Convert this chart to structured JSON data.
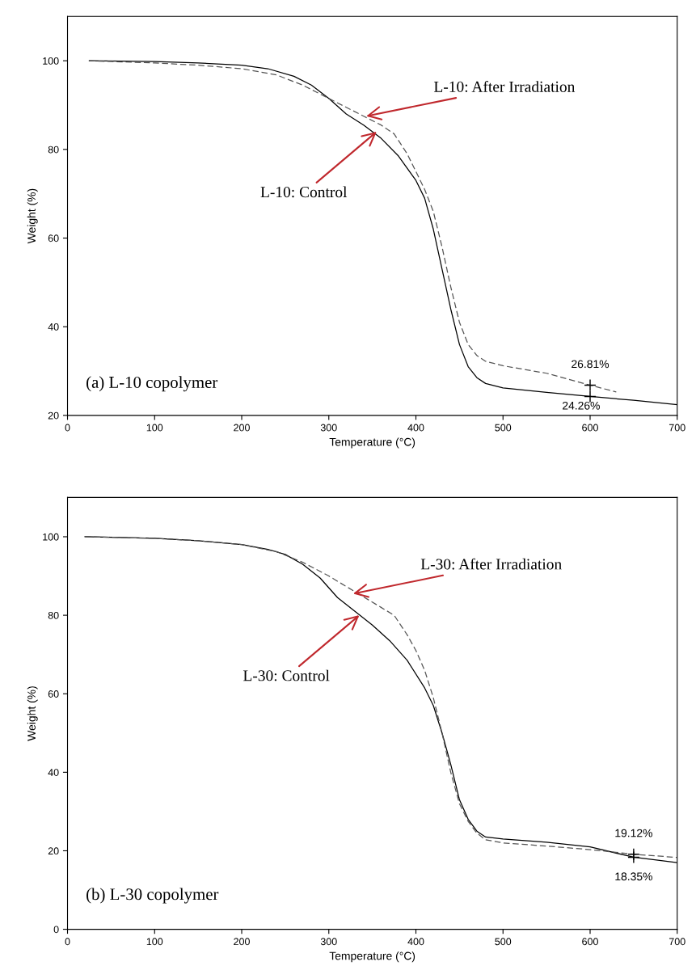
{
  "chart_data": [
    {
      "type": "line",
      "title": "(a) L-10 copolymer",
      "xlabel": "Temperature (°C)",
      "ylabel": "Weight (%)",
      "xlim": [
        0,
        700
      ],
      "xticks": [
        0,
        100,
        200,
        300,
        400,
        500,
        600,
        700
      ],
      "ylim": [
        20,
        110
      ],
      "yticks": [
        20,
        40,
        60,
        80,
        100
      ],
      "grid": false,
      "legend": false,
      "series": [
        {
          "color": "#000000",
          "line_style": "solid",
          "x": [
            25,
            100,
            150,
            200,
            230,
            260,
            280,
            300,
            320,
            340,
            360,
            380,
            400,
            410,
            420,
            430,
            440,
            450,
            460,
            470,
            480,
            500,
            550,
            600,
            650,
            700
          ],
          "values": [
            100,
            99.8,
            99.5,
            99.0,
            98.2,
            96.5,
            94.5,
            91.5,
            88,
            85.5,
            82.5,
            78.5,
            73,
            69,
            62,
            53,
            44,
            36,
            31,
            28.5,
            27.2,
            26.2,
            25.2,
            24.26,
            23.4,
            22.4
          ]
        },
        {
          "color": "#555555",
          "line_style": "dashed",
          "x": [
            25,
            100,
            150,
            200,
            240,
            270,
            300,
            320,
            340,
            360,
            375,
            390,
            400,
            410,
            420,
            430,
            440,
            450,
            460,
            470,
            480,
            500,
            550,
            600,
            630
          ],
          "values": [
            100,
            99.5,
            99.0,
            98.2,
            96.8,
            94.5,
            91.5,
            89.5,
            87.5,
            85.5,
            83.5,
            79,
            75,
            71,
            66,
            58,
            49,
            41,
            36,
            33.5,
            32.2,
            31.2,
            29.5,
            26.81,
            25.3
          ]
        }
      ],
      "annotations": [
        {
          "text": "L-10: After Irradiation",
          "x": 343,
          "y": 87.5
        },
        {
          "text": "L-10: Control",
          "x": 355,
          "y": 84
        },
        {
          "text": "26.81%",
          "x": 600,
          "y": 26.81
        },
        {
          "text": "24.26%",
          "x": 600,
          "y": 24.26
        }
      ]
    },
    {
      "type": "line",
      "title": "(b) L-30 copolymer",
      "xlabel": "Temperature (°C)",
      "ylabel": "Weight (%)",
      "xlim": [
        0,
        700
      ],
      "xticks": [
        0,
        100,
        200,
        300,
        400,
        500,
        600,
        700
      ],
      "ylim": [
        0,
        110
      ],
      "yticks": [
        0,
        20,
        40,
        60,
        80,
        100
      ],
      "grid": false,
      "legend": false,
      "series": [
        {
          "color": "#000000",
          "line_style": "solid",
          "x": [
            20,
            100,
            150,
            200,
            230,
            250,
            270,
            290,
            310,
            330,
            350,
            370,
            390,
            410,
            420,
            430,
            440,
            450,
            460,
            470,
            480,
            500,
            550,
            600,
            650,
            700
          ],
          "values": [
            100,
            99.6,
            99.0,
            98.0,
            96.8,
            95.5,
            93,
            89.5,
            84.5,
            81,
            77.5,
            73.5,
            68.5,
            61.5,
            57,
            50,
            42,
            33,
            28,
            25,
            23.5,
            23,
            22.2,
            21,
            18.35,
            17.0
          ]
        },
        {
          "color": "#555555",
          "line_style": "dashed",
          "x": [
            20,
            100,
            150,
            200,
            240,
            270,
            300,
            330,
            360,
            375,
            390,
            400,
            410,
            420,
            430,
            440,
            450,
            460,
            470,
            480,
            500,
            550,
            600,
            650,
            700
          ],
          "values": [
            100,
            99.6,
            99.0,
            98.0,
            96.2,
            93.5,
            90,
            86,
            82,
            80,
            75,
            71,
            66,
            59,
            50,
            40,
            32,
            27.5,
            24.5,
            22.8,
            22,
            21.2,
            20.3,
            19.12,
            18.3
          ]
        }
      ],
      "annotations": [
        {
          "text": "L-30: After Irradiation",
          "x": 328,
          "y": 85.5
        },
        {
          "text": "L-30: Control",
          "x": 335,
          "y": 80
        },
        {
          "text": "19.12%",
          "x": 650,
          "y": 19.12
        },
        {
          "text": "18.35%",
          "x": 650,
          "y": 18.35
        }
      ]
    }
  ]
}
